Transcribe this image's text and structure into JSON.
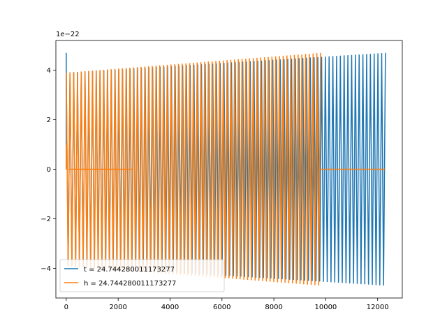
{
  "chart_data": {
    "type": "line",
    "title": "",
    "xlabel": "",
    "ylabel": "",
    "offset_text": "1e−22",
    "xlim": [
      -400,
      12950
    ],
    "ylim": [
      -5.2,
      5.2
    ],
    "x_ticks": [
      0,
      2000,
      4000,
      6000,
      8000,
      10000,
      12000
    ],
    "y_ticks": [
      -4,
      -2,
      0,
      2,
      4
    ],
    "y_tick_labels": [
      "−4",
      "−2",
      "0",
      "2",
      "4"
    ],
    "legend_position": "lower left",
    "grid": false,
    "series": [
      {
        "name": "t = 24.744280011173277",
        "color": "#1f77b4",
        "envelope": {
          "x_start": 0,
          "x_end": 12300,
          "start_amplitude": 3.9,
          "end_amplitude": 4.7,
          "cycles": 170,
          "x_mark": 12300
        },
        "segments_zero": [],
        "spike": {
          "x": 0,
          "value": 4.7
        }
      },
      {
        "name": "h = 24.744280011173277",
        "color": "#ff7f0e",
        "envelope": {
          "x_start": 0,
          "x_end": 9800,
          "start_amplitude": 3.9,
          "end_amplitude": 4.7,
          "cycles": 136
        },
        "segments_zero": [
          {
            "x_start": 80,
            "x_end": 2550
          },
          {
            "x_start": 9800,
            "x_end": 12300
          }
        ],
        "spike": {
          "x": 0,
          "value": 1.0
        }
      }
    ]
  }
}
